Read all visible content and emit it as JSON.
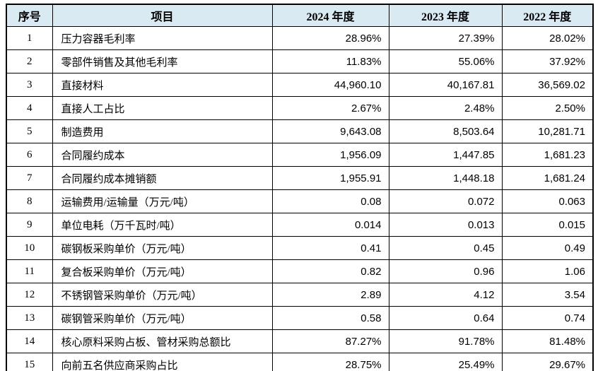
{
  "table": {
    "header_bg": "#daeaf3",
    "border_color": "#000000",
    "columns": [
      {
        "key": "no",
        "label": "序号"
      },
      {
        "key": "item",
        "label": "项目"
      },
      {
        "key": "y2024",
        "label": "2024 年度"
      },
      {
        "key": "y2023",
        "label": "2023 年度"
      },
      {
        "key": "y2022",
        "label": "2022 年度"
      }
    ],
    "rows": [
      {
        "no": "1",
        "item": "压力容器毛利率",
        "y2024": "28.96%",
        "y2023": "27.39%",
        "y2022": "28.02%"
      },
      {
        "no": "2",
        "item": "零部件销售及其他毛利率",
        "y2024": "11.83%",
        "y2023": "55.06%",
        "y2022": "37.92%"
      },
      {
        "no": "3",
        "item": "直接材料",
        "y2024": "44,960.10",
        "y2023": "40,167.81",
        "y2022": "36,569.02"
      },
      {
        "no": "4",
        "item": "直接人工占比",
        "y2024": "2.67%",
        "y2023": "2.48%",
        "y2022": "2.50%"
      },
      {
        "no": "5",
        "item": "制造费用",
        "y2024": "9,643.08",
        "y2023": "8,503.64",
        "y2022": "10,281.71"
      },
      {
        "no": "6",
        "item": "合同履约成本",
        "y2024": "1,956.09",
        "y2023": "1,447.85",
        "y2022": "1,681.23"
      },
      {
        "no": "7",
        "item": "合同履约成本摊销额",
        "y2024": "1,955.91",
        "y2023": "1,448.18",
        "y2022": "1,681.24"
      },
      {
        "no": "8",
        "item": "运输费用/运输量（万元/吨）",
        "y2024": "0.08",
        "y2023": "0.072",
        "y2022": "0.063"
      },
      {
        "no": "9",
        "item": "单位电耗（万千瓦时/吨）",
        "y2024": "0.014",
        "y2023": "0.013",
        "y2022": "0.015"
      },
      {
        "no": "10",
        "item": "碳钢板采购单价（万元/吨）",
        "y2024": "0.41",
        "y2023": "0.45",
        "y2022": "0.49"
      },
      {
        "no": "11",
        "item": "复合板采购单价（万元/吨）",
        "y2024": "0.82",
        "y2023": "0.96",
        "y2022": "1.06"
      },
      {
        "no": "12",
        "item": "不锈钢管采购单价（万元/吨）",
        "y2024": "2.89",
        "y2023": "4.12",
        "y2022": "3.54"
      },
      {
        "no": "13",
        "item": "碳钢管采购单价（万元/吨）",
        "y2024": "0.58",
        "y2023": "0.64",
        "y2022": "0.74"
      },
      {
        "no": "14",
        "item": "核心原料采购占板、管材采购总额比",
        "y2024": "87.27%",
        "y2023": "91.78%",
        "y2022": "81.48%"
      },
      {
        "no": "15",
        "item": "向前五名供应商采购占比",
        "y2024": "28.75%",
        "y2023": "25.49%",
        "y2022": "29.67%"
      }
    ]
  }
}
